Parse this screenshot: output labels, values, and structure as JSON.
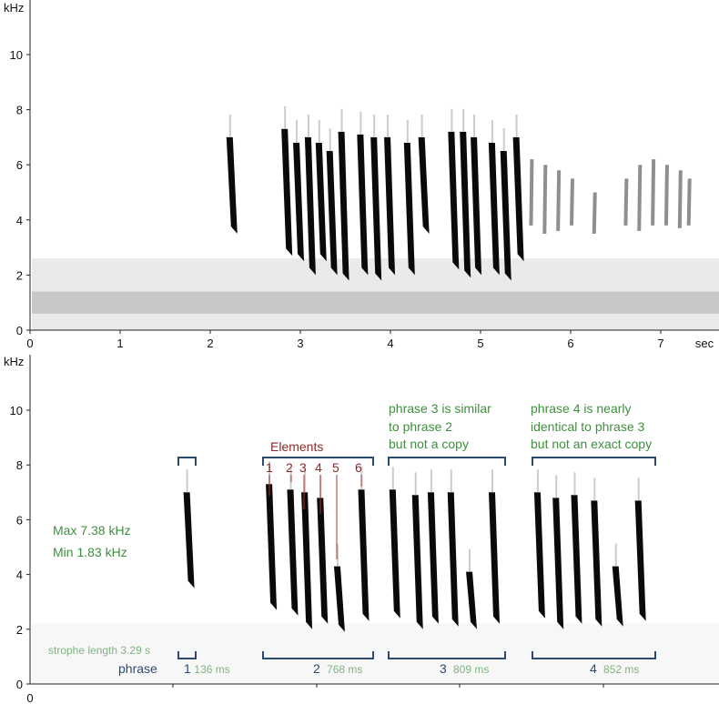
{
  "chart_data": [
    {
      "type": "spectrogram",
      "panel": "top",
      "xlabel": "sec",
      "ylabel": "kHz",
      "xticks": [
        "0",
        "1",
        "2",
        "3",
        "4",
        "5",
        "6",
        "7"
      ],
      "yticks": [
        "0",
        "2",
        "4",
        "6",
        "8",
        "10"
      ],
      "xlim": [
        0,
        7.65
      ],
      "ylim": [
        0,
        12
      ],
      "syllables": [
        [
          2.21,
          7.0,
          3.5
        ],
        [
          2.82,
          7.3,
          2.7
        ],
        [
          2.95,
          6.8,
          2.5
        ],
        [
          3.08,
          7.0,
          2.0
        ],
        [
          3.2,
          6.8,
          2.5
        ],
        [
          3.32,
          6.5,
          2.0
        ],
        [
          3.45,
          7.2,
          1.8
        ],
        [
          3.66,
          7.1,
          2.0
        ],
        [
          3.81,
          7.0,
          1.8
        ],
        [
          3.96,
          7.0,
          2.0
        ],
        [
          4.18,
          6.8,
          2.0
        ],
        [
          4.34,
          7.0,
          3.5
        ],
        [
          4.67,
          7.2,
          2.2
        ],
        [
          4.8,
          7.2,
          1.9
        ],
        [
          4.92,
          7.0,
          2.0
        ],
        [
          5.12,
          6.8,
          2.0
        ],
        [
          5.25,
          6.5,
          1.8
        ],
        [
          5.39,
          7.0,
          2.5
        ]
      ],
      "faint_syllables": [
        [
          5.55,
          6.2,
          3.8
        ],
        [
          5.7,
          6.0,
          3.5
        ],
        [
          5.85,
          5.8,
          3.6
        ],
        [
          6.0,
          5.5,
          3.8
        ],
        [
          6.25,
          5.0,
          3.5
        ],
        [
          6.6,
          5.5,
          3.8
        ],
        [
          6.75,
          6.0,
          3.6
        ],
        [
          6.9,
          6.2,
          3.8
        ],
        [
          7.05,
          6.0,
          3.8
        ],
        [
          7.2,
          5.8,
          3.7
        ],
        [
          7.3,
          5.5,
          3.8
        ]
      ]
    },
    {
      "type": "spectrogram",
      "panel": "bottom",
      "ylabel": "kHz",
      "xticks": [
        "0"
      ],
      "yticks": [
        "0",
        "2",
        "4",
        "6",
        "8",
        "10"
      ],
      "xlim": [
        0,
        4.85
      ],
      "ylim": [
        0,
        12
      ],
      "syllables": [
        [
          1.1,
          7.0,
          3.5
        ],
        [
          1.68,
          7.3,
          2.7
        ],
        [
          1.83,
          7.1,
          2.5
        ],
        [
          1.93,
          7.0,
          2.0
        ],
        [
          2.04,
          6.8,
          2.2
        ],
        [
          2.16,
          4.3,
          1.9
        ],
        [
          2.33,
          7.1,
          2.3
        ],
        [
          2.55,
          7.1,
          2.4
        ],
        [
          2.71,
          6.9,
          2.0
        ],
        [
          2.82,
          7.0,
          2.2
        ],
        [
          2.96,
          7.0,
          2.1
        ],
        [
          3.09,
          4.1,
          2.0
        ],
        [
          3.25,
          7.0,
          2.2
        ],
        [
          3.57,
          7.0,
          2.4
        ],
        [
          3.7,
          6.8,
          2.0
        ],
        [
          3.83,
          6.9,
          2.2
        ],
        [
          3.97,
          6.7,
          2.1
        ],
        [
          4.12,
          4.3,
          2.1
        ],
        [
          4.28,
          6.7,
          2.3
        ]
      ]
    }
  ],
  "annotations": {
    "max": "Max 7.38 kHz",
    "min": "Min  1.83 kHz",
    "elements_label": "Elements",
    "element_numbers": [
      "1",
      "2",
      "3",
      "4",
      "5",
      "6"
    ],
    "phrase3_note": [
      "phrase 3 is similar",
      "to phrase 2",
      "but not a copy"
    ],
    "phrase4_note": [
      "phrase 4 is nearly",
      "identical to phrase 3",
      "but not an exact copy"
    ],
    "strophe_label": "strophe length",
    "strophe_value": "3.29 s",
    "phrase_label": "phrase",
    "phrases": [
      {
        "n": "1",
        "dur": "136 ms"
      },
      {
        "n": "2",
        "dur": "768 ms"
      },
      {
        "n": "3",
        "dur": "809 ms"
      },
      {
        "n": "4",
        "dur": "852 ms"
      }
    ]
  },
  "colors": {
    "green": "#3f8f3f",
    "light_green": "#7fb57f",
    "blue": "#2c4a6e",
    "red": "#8b2a2a"
  }
}
